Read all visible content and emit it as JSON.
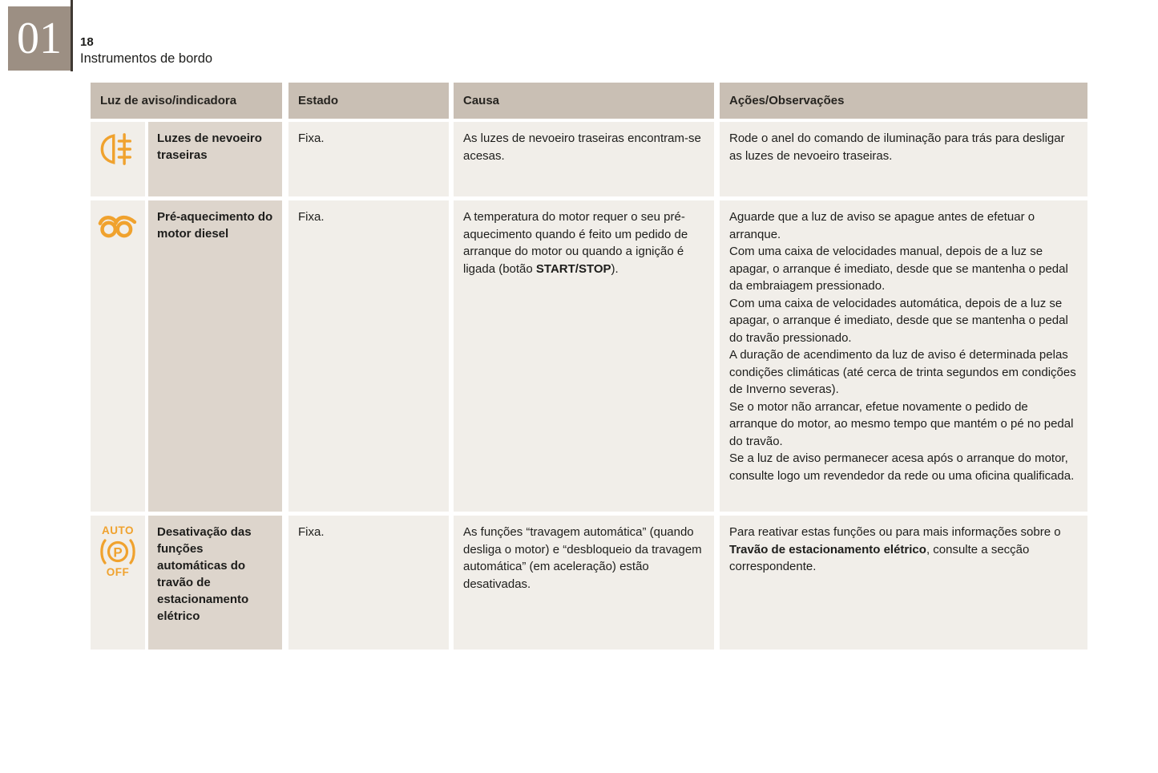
{
  "page": {
    "chapter_number": "01",
    "page_number": "18",
    "section_title": "Instrumentos de bordo"
  },
  "colors": {
    "accent_orange": "#f0a22e",
    "header_bg": "#c9bfb4",
    "label_cell_bg": "#ddd5cc",
    "body_cell_bg": "#f1eee9",
    "chapter_box_bg": "#9c8f83"
  },
  "table": {
    "headers": {
      "light": "Luz de aviso/indicadora",
      "state": "Estado",
      "cause": "Causa",
      "actions": "Ações/Observações"
    },
    "rows": [
      {
        "icon": "rear-fog-lights-icon",
        "label": "Luzes de nevoeiro traseiras",
        "state": "Fixa.",
        "cause": [
          {
            "t": "As luzes de nevoeiro traseiras encontram-se acesas."
          }
        ],
        "actions": [
          {
            "t": "Rode o anel do comando de iluminação para trás para desligar as luzes de nevoeiro traseiras."
          }
        ]
      },
      {
        "icon": "diesel-preheating-glow-plug-icon",
        "label": "Pré-aquecimento do motor diesel",
        "state": "Fixa.",
        "cause": [
          {
            "t": "A temperatura do motor requer o seu pré-aquecimento quando é feito um pedido de arranque do motor ou quando a ignição é ligada (botão "
          },
          {
            "t": "START/STOP",
            "b": true
          },
          {
            "t": ")."
          }
        ],
        "actions": [
          {
            "t": "Aguarde que a luz de aviso se apague antes de efetuar o arranque.\nCom uma caixa de velocidades manual, depois de a luz se apagar, o arranque é imediato, desde que se mantenha o pedal da embraiagem pressionado.\nCom uma caixa de velocidades automática, depois de a luz se apagar, o arranque é imediato, desde que se mantenha o pedal do travão pressionado.\nA duração de acendimento da luz de aviso é determinada pelas condições climáticas (até cerca de trinta segundos em condições de Inverno severas).\nSe o motor não arrancar, efetue novamente o pedido de arranque do motor, ao mesmo tempo que mantém o pé no pedal do travão.\nSe a luz de aviso permanecer acesa após o arranque do motor, consulte logo um revendedor da rede ou uma oficina qualificada."
          }
        ]
      },
      {
        "icon": "auto-parking-brake-off-icon",
        "icon_text_top": "AUTO",
        "icon_letter": "P",
        "icon_text_bottom": "OFF",
        "label": "Desativação das funções automáticas do travão de estacionamento elétrico",
        "state": "Fixa.",
        "cause": [
          {
            "t": "As funções “travagem automática” (quando desliga o motor) e “desbloqueio da travagem automática” (em aceleração) estão desativadas."
          }
        ],
        "actions": [
          {
            "t": "Para reativar estas funções ou para mais informações sobre o "
          },
          {
            "t": "Travão de estacionamento elétrico",
            "b": true
          },
          {
            "t": ", consulte a secção correspondente."
          }
        ]
      }
    ]
  }
}
